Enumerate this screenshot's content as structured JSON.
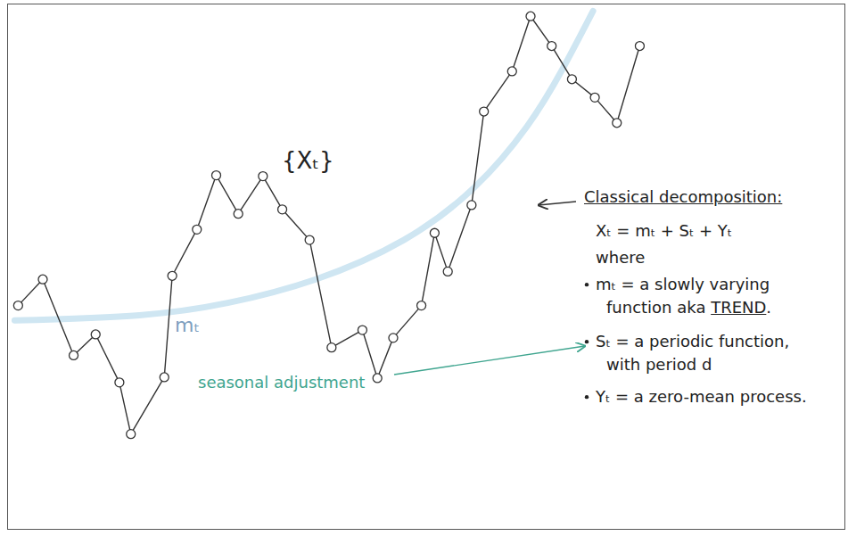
{
  "chart_data": {
    "type": "line",
    "xlim": [
      0,
      951
    ],
    "ylim": [
      0,
      601
    ],
    "xticks": [],
    "yticks": [],
    "tick_labels": false,
    "grid": false,
    "series": [
      {
        "name": "mₜ",
        "color": "#cfe6f2",
        "line_style": "solid",
        "x": [
          8,
          150,
          250,
          350,
          450,
          530,
          590,
          630,
          665
        ],
        "values": [
          239,
          245,
          259,
          286,
          331,
          391,
          461,
          526,
          593
        ]
      },
      {
        "name": "{Xₜ}",
        "color": "#333333",
        "marker": "circle",
        "line_style": "solid",
        "x": [
          12,
          40,
          75,
          100,
          127,
          140,
          178,
          187,
          215,
          237,
          262,
          290,
          312,
          343,
          368,
          403,
          420,
          438,
          470,
          485,
          500,
          527,
          541,
          573,
          594,
          618,
          641,
          667,
          692,
          718
        ],
        "values": [
          256,
          286,
          199,
          223,
          168,
          109,
          174,
          290,
          343,
          405,
          361,
          404,
          366,
          331,
          208,
          228,
          173,
          219,
          256,
          339,
          295,
          371,
          478,
          524,
          587,
          553,
          515,
          494,
          465,
          553
        ]
      }
    ],
    "annotations": [
      "Classical decomposition:",
      "Xₜ = mₜ + Sₜ + Yₜ",
      "where",
      "mₜ = a slowly varying",
      "function aka TREND.",
      "Sₜ = a periodic function,",
      "with period d",
      "Yₜ = a zero-mean process.",
      "seasonal adjustment"
    ]
  }
}
